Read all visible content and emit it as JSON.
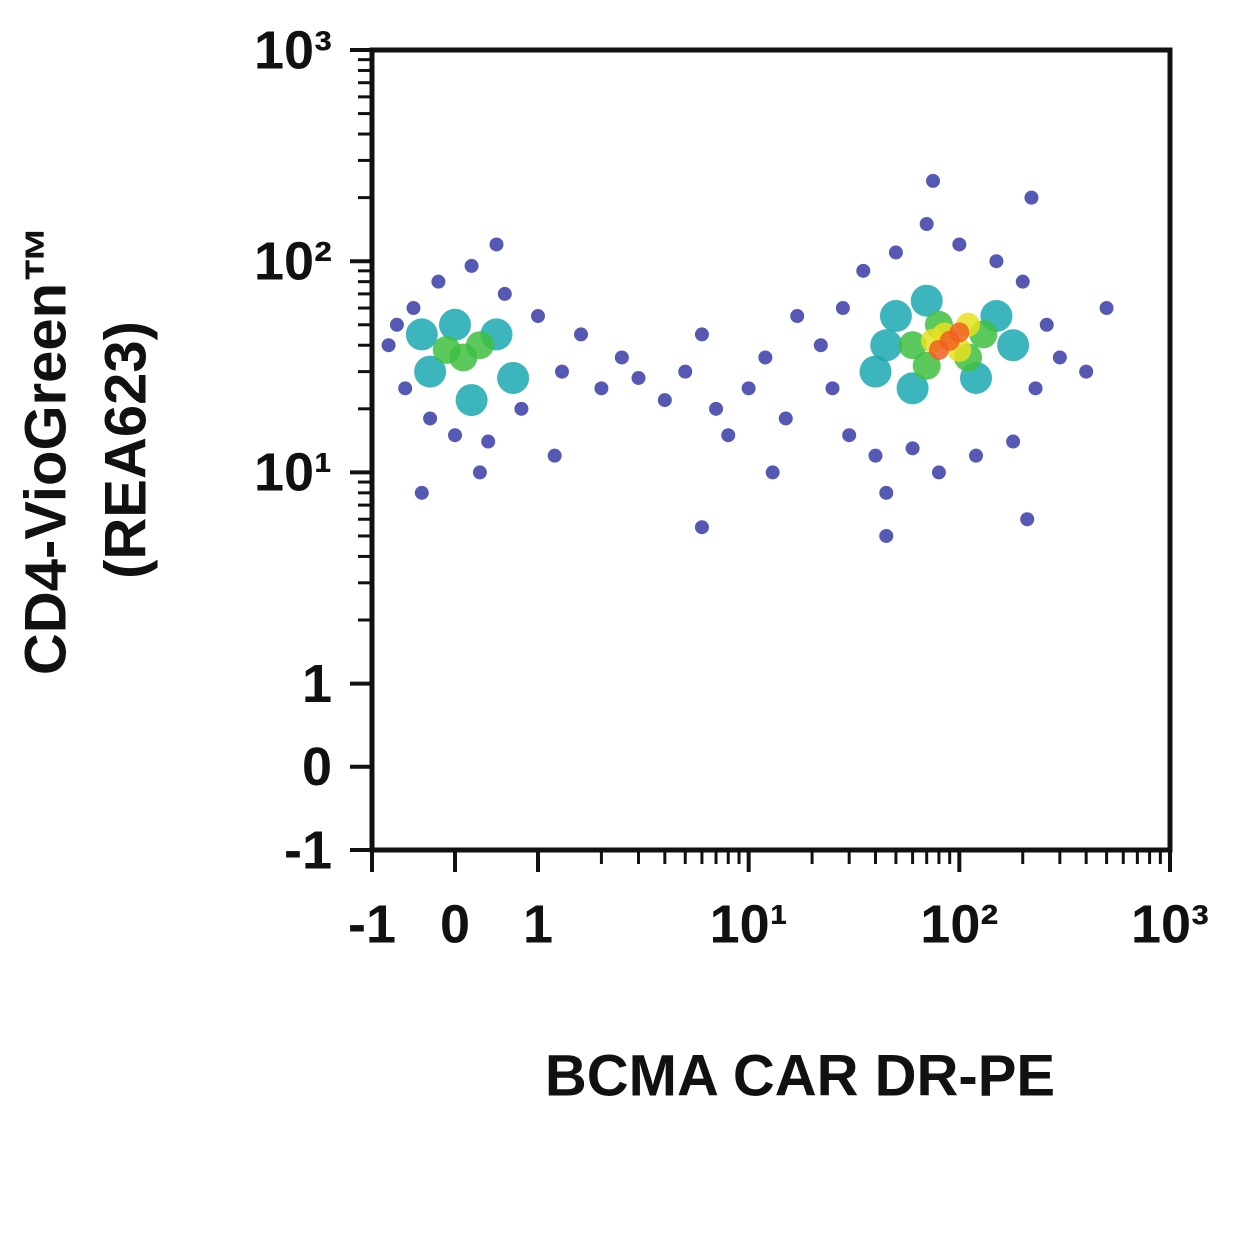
{
  "chart_data": {
    "type": "scatter",
    "xlabel": "BCMA CAR DR-PE",
    "ylabel": "CD4-VioGreen™",
    "ylabel2": "(REA623)",
    "xscale": "biexponential",
    "yscale": "biexponential",
    "xlim": [
      -1,
      1000
    ],
    "ylim": [
      -1,
      1000
    ],
    "xticks": [
      -1,
      0,
      1,
      {
        "value": 10,
        "label": "10¹"
      },
      {
        "value": 100,
        "label": "10²"
      },
      {
        "value": 1000,
        "label": "10³"
      }
    ],
    "yticks": [
      -1,
      0,
      1,
      {
        "value": 10,
        "label": "10¹"
      },
      {
        "value": 100,
        "label": "10²"
      },
      {
        "value": 1000,
        "label": "10³"
      }
    ],
    "xminorticks": [
      2,
      3,
      4,
      5,
      6,
      7,
      8,
      9,
      20,
      30,
      40,
      50,
      60,
      70,
      80,
      90,
      200,
      300,
      400,
      500,
      600,
      700,
      800,
      900
    ],
    "yminorticks": [
      2,
      3,
      4,
      5,
      6,
      7,
      8,
      9,
      20,
      30,
      40,
      50,
      60,
      70,
      80,
      90,
      200,
      300,
      400,
      500,
      600,
      700,
      800,
      900
    ],
    "series": [
      {
        "color": "#2b2fa0",
        "x": [
          -0.8,
          -0.6,
          -0.5,
          -0.3,
          -0.2,
          0,
          0.2,
          0.4,
          0.6,
          0.8,
          1.0,
          1.3,
          1.6,
          2,
          2.5,
          3,
          4,
          -0.7,
          0.5,
          0.3,
          -0.4,
          1.2,
          5,
          6,
          7,
          8,
          10,
          12,
          13,
          15,
          17,
          6,
          22,
          25,
          28,
          30,
          35,
          40,
          45,
          50,
          60,
          70,
          80,
          100,
          120,
          150,
          180,
          200,
          230,
          260,
          300,
          400,
          500,
          75,
          220,
          45,
          210
        ],
        "y": [
          40,
          25,
          60,
          18,
          80,
          15,
          95,
          14,
          70,
          20,
          55,
          30,
          45,
          25,
          35,
          28,
          22,
          50,
          120,
          10,
          8,
          12,
          30,
          45,
          20,
          15,
          25,
          35,
          10,
          18,
          55,
          5.5,
          40,
          25,
          60,
          15,
          90,
          12,
          8,
          110,
          13,
          150,
          10,
          120,
          12,
          100,
          14,
          80,
          25,
          50,
          35,
          30,
          60,
          240,
          200,
          5,
          6
        ]
      },
      {
        "color": "#1aa8b0",
        "x": [
          -0.3,
          0,
          0.5,
          0.7,
          0.2,
          -0.4,
          40,
          50,
          60,
          70,
          120,
          150,
          180,
          45
        ],
        "y": [
          30,
          50,
          45,
          28,
          22,
          45,
          30,
          55,
          25,
          65,
          28,
          55,
          40,
          40
        ]
      },
      {
        "color": "#40c040",
        "x": [
          0.1,
          0.3,
          -0.1,
          60,
          80,
          110,
          130,
          70
        ],
        "y": [
          35,
          40,
          38,
          40,
          50,
          35,
          45,
          32
        ]
      },
      {
        "color": "#e8e020",
        "x": [
          85,
          100,
          75,
          110
        ],
        "y": [
          45,
          38,
          42,
          50
        ]
      },
      {
        "color": "#f06020",
        "x": [
          90,
          100,
          80
        ],
        "y": [
          42,
          46,
          38
        ]
      }
    ]
  }
}
